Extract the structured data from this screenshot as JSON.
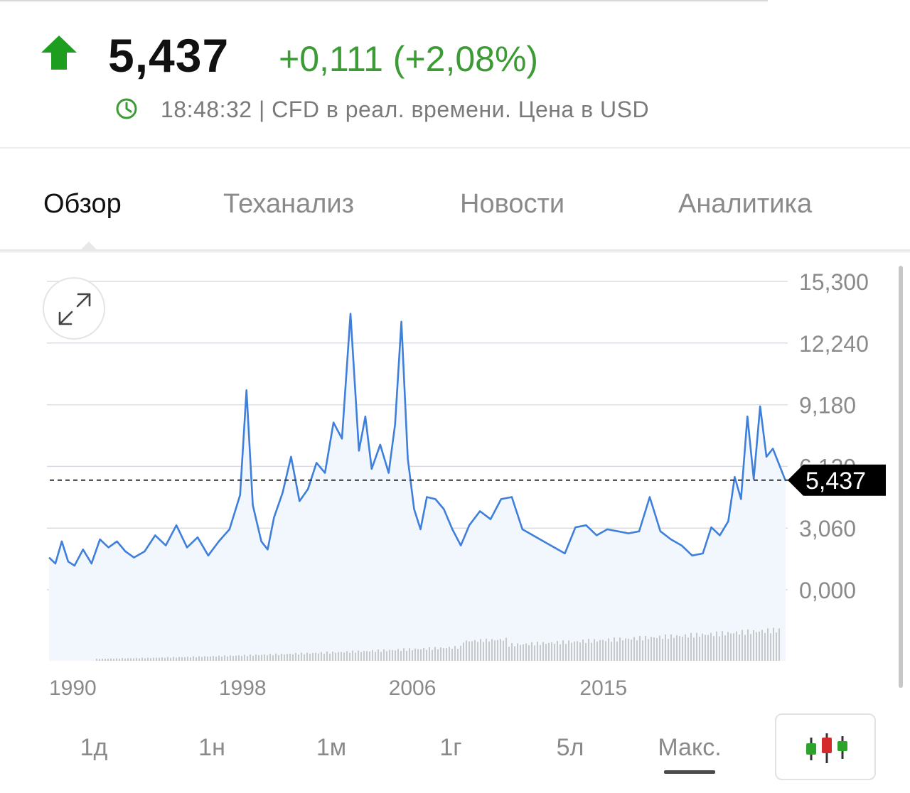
{
  "quote": {
    "price": "5,437",
    "change": "+0,111 (+2,08%)",
    "direction": "up",
    "status": "18:48:32 | CFD в реал. времени. Цена в USD"
  },
  "tabs": [
    {
      "label": "Обзор",
      "active": true
    },
    {
      "label": "Теханализ",
      "active": false
    },
    {
      "label": "Новости",
      "active": false
    },
    {
      "label": "Аналитика",
      "active": false
    }
  ],
  "icons": {
    "direction": "up-arrow-icon",
    "clock": "clock-icon",
    "expand": "expand-icon",
    "chart_type": "candlestick-icon"
  },
  "colors": {
    "up": "#3d9b35",
    "arrow": "#1e9e1e",
    "line": "#3f7fdc",
    "fill": "#f2f7fd",
    "candle_up": "#2aa52a",
    "candle_down": "#d42a2a"
  },
  "range_buttons": [
    {
      "label": "1д",
      "active": false
    },
    {
      "label": "1н",
      "active": false
    },
    {
      "label": "1м",
      "active": false
    },
    {
      "label": "1г",
      "active": false
    },
    {
      "label": "5л",
      "active": false
    },
    {
      "label": "Макс.",
      "active": true
    }
  ],
  "chart_data": {
    "type": "line",
    "y_tick_labels": [
      "0,000",
      "3,060",
      "6,120",
      "9,180",
      "12,240",
      "15,300"
    ],
    "x_tick_labels": [
      "1990",
      "1998",
      "2006",
      "2015"
    ],
    "ylim": [
      0,
      15.3
    ],
    "xlim": [
      1989.9,
      2024.8
    ],
    "current_value": 5.437,
    "current_value_label": "5,437",
    "grid": true,
    "volume_bars": true,
    "series": [
      {
        "x": [
          1990.0,
          1990.3,
          1990.6,
          1990.9,
          1991.2,
          1991.6,
          1992.0,
          1992.4,
          1992.8,
          1993.2,
          1993.6,
          1994.0,
          1994.5,
          1995.0,
          1995.5,
          1996.0,
          1996.5,
          1997.0,
          1997.5,
          1998.0,
          1998.5,
          1999.0,
          1999.3,
          1999.6,
          2000.0,
          2000.3,
          2000.6,
          2001.0,
          2001.4,
          2001.8,
          2002.2,
          2002.6,
          2003.0,
          2003.4,
          2003.8,
          2004.2,
          2004.6,
          2004.9,
          2005.2,
          2005.6,
          2006.0,
          2006.3,
          2006.6,
          2006.9,
          2007.2,
          2007.5,
          2007.8,
          2008.2,
          2008.6,
          2009.0,
          2009.4,
          2009.8,
          2010.3,
          2010.8,
          2011.3,
          2011.8,
          2012.3,
          2012.8,
          2013.3,
          2013.8,
          2014.3,
          2014.8,
          2015.3,
          2015.8,
          2016.3,
          2016.8,
          2017.3,
          2017.8,
          2018.3,
          2018.8,
          2019.3,
          2019.8,
          2020.3,
          2020.8,
          2021.2,
          2021.6,
          2022.0,
          2022.3,
          2022.6,
          2022.9,
          2023.2,
          2023.5,
          2023.8,
          2024.1,
          2024.4,
          2024.7
        ],
        "y": [
          1.6,
          1.3,
          2.4,
          1.4,
          1.2,
          2.0,
          1.3,
          2.5,
          2.1,
          2.4,
          1.9,
          1.6,
          1.9,
          2.7,
          2.2,
          3.2,
          2.1,
          2.6,
          1.7,
          2.4,
          3.0,
          4.7,
          9.9,
          4.2,
          2.4,
          2.0,
          3.6,
          4.8,
          6.6,
          4.4,
          5.0,
          6.3,
          5.8,
          8.3,
          7.5,
          13.7,
          6.9,
          8.6,
          6.0,
          7.2,
          5.8,
          8.2,
          13.3,
          6.5,
          4.0,
          3.0,
          4.6,
          4.5,
          4.0,
          3.0,
          2.2,
          3.2,
          3.9,
          3.5,
          4.5,
          4.6,
          3.0,
          2.7,
          2.4,
          2.1,
          1.8,
          3.1,
          3.2,
          2.7,
          3.0,
          2.9,
          2.8,
          2.9,
          4.6,
          2.9,
          2.5,
          2.2,
          1.7,
          1.8,
          3.1,
          2.7,
          3.4,
          5.6,
          4.5,
          8.6,
          5.5,
          9.1,
          6.6,
          7.0,
          6.2,
          5.4
        ]
      }
    ]
  }
}
